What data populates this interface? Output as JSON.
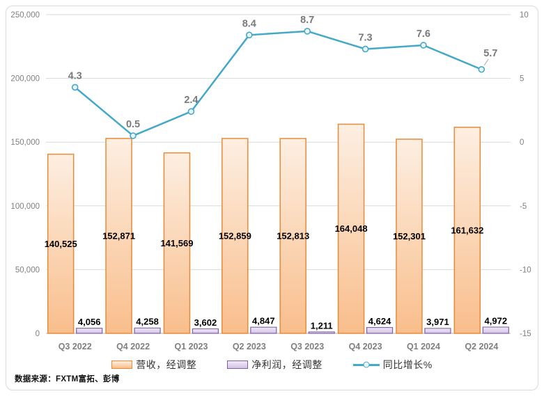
{
  "source_note": "数据来源：FXTM富拓、彭博",
  "panel": {
    "background": "#ffffff",
    "border_color": "#d9d9d9"
  },
  "chart_data": {
    "type": "combo",
    "categories": [
      "Q3 2022",
      "Q4 2022",
      "Q1 2023",
      "Q2 2023",
      "Q3 2023",
      "Q4 2023",
      "Q1 2024",
      "Q2 2024"
    ],
    "series": [
      {
        "name": "营收，经调整",
        "type": "bar",
        "axis": "left",
        "values": [
          140525,
          152871,
          141569,
          152859,
          152813,
          164048,
          152301,
          161632
        ],
        "labels": [
          "140,525",
          "152,871",
          "141,569",
          "152,859",
          "152,813",
          "164,048",
          "152,301",
          "161,632"
        ],
        "label_position": "center",
        "fill_top": "#fdefe2",
        "fill_bottom": "#f9be8c",
        "border": "#e78b3b"
      },
      {
        "name": "净利润，经调整",
        "type": "bar",
        "axis": "left",
        "values": [
          4056,
          4258,
          3602,
          4847,
          1211,
          4624,
          3971,
          4972
        ],
        "labels": [
          "4,056",
          "4,258",
          "3,602",
          "4,847",
          "1,211",
          "4,624",
          "3,971",
          "4,972"
        ],
        "label_position": "outside-end",
        "fill_top": "#f0eaf7",
        "fill_bottom": "#d3c3e5",
        "border": "#7e60a2"
      },
      {
        "name": "同比增长%",
        "type": "line",
        "axis": "right",
        "values": [
          4.3,
          0.5,
          2.4,
          8.4,
          8.7,
          7.3,
          7.6,
          5.7
        ],
        "labels": [
          "4.3",
          "0.5",
          "2.4",
          "8.4",
          "8.7",
          "7.3",
          "7.6",
          "5.7"
        ],
        "color": "#44a8c8",
        "marker_fill": "#e9f6fb"
      }
    ],
    "left_axis": {
      "min": 0,
      "max": 250000,
      "step": 50000,
      "tick_labels": [
        "250,000",
        "200,000",
        "150,000",
        "100,000",
        "50,000",
        "0"
      ]
    },
    "right_axis": {
      "min": -15,
      "max": 10,
      "step": 5,
      "tick_labels": [
        "10",
        "5",
        "0",
        "-5",
        "-10",
        "-15"
      ]
    },
    "grid": {
      "color": "#d9d9d9",
      "axis_line_color": "#b3b3b3",
      "leader_color": "#a6a6a6"
    },
    "text_colors": {
      "axis_tick": "#7f7f7f",
      "category": "#7f7f7f",
      "bar_label": "#000000",
      "line_label": "#7a7a7a"
    },
    "legend_position": "bottom"
  }
}
